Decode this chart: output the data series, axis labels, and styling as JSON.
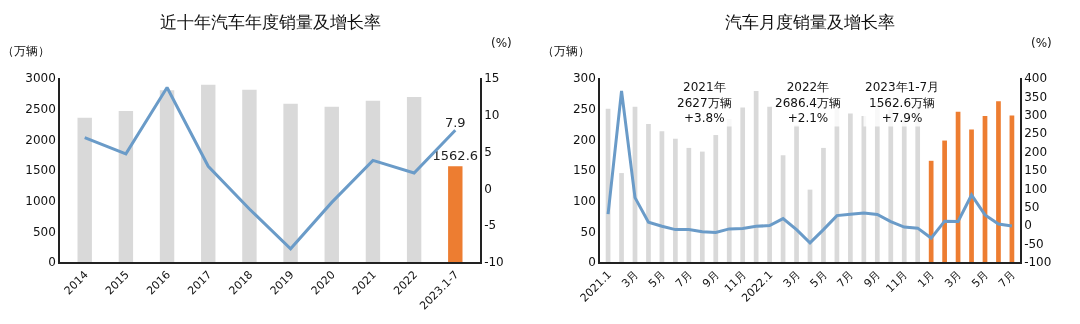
{
  "chart_data": [
    {
      "type": "bar",
      "title": "近十年汽车年度销量及增长率",
      "ylabel": "（万辆）",
      "y2label": "(%)",
      "categories": [
        "2014",
        "2015",
        "2016",
        "2017",
        "2018",
        "2019",
        "2020",
        "2021",
        "2022",
        "2023.1-7"
      ],
      "series": [
        {
          "colors": [
            "#d9d9d9",
            "#d9d9d9",
            "#d9d9d9",
            "#d9d9d9",
            "#d9d9d9",
            "#d9d9d9",
            "#d9d9d9",
            "#d9d9d9",
            "#d9d9d9",
            "#ed7d31"
          ],
          "values": [
            2350,
            2460,
            2800,
            2890,
            2810,
            2580,
            2530,
            2630,
            2690,
            1562.6
          ],
          "value_labels": [
            null,
            null,
            null,
            null,
            null,
            null,
            null,
            null,
            null,
            "1562.6"
          ]
        },
        {
          "type": "line",
          "axis": "y2",
          "color": "#6a9bc8",
          "values": [
            6.9,
            4.7,
            13.7,
            3.0,
            -2.8,
            -8.2,
            -1.9,
            3.8,
            2.1,
            7.9
          ],
          "value_labels": [
            null,
            null,
            null,
            null,
            null,
            null,
            null,
            null,
            null,
            "7.9"
          ]
        }
      ],
      "ylim": [
        0,
        3000
      ],
      "yticks": [
        0,
        500,
        1000,
        1500,
        2000,
        2500,
        3000
      ],
      "y2lim": [
        -10,
        15
      ],
      "y2ticks": [
        -10,
        -5,
        0,
        5,
        10,
        15
      ],
      "grid": false,
      "marker": "none",
      "line_style": "solid"
    },
    {
      "type": "bar",
      "title": "汽车月度销量及增长率",
      "ylabel": "（万辆）",
      "y2label": "(%)",
      "categories": [
        "2021.1",
        null,
        "3月",
        null,
        "5月",
        null,
        "7月",
        null,
        "9月",
        null,
        "11月",
        null,
        "2022.1",
        null,
        "3月",
        null,
        "5月",
        null,
        "7月",
        null,
        "9月",
        null,
        "11月",
        null,
        "1月",
        null,
        "3月",
        null,
        "5月",
        null,
        "7月"
      ],
      "series": [
        {
          "colors": [
            "#d9d9d9",
            "#d9d9d9",
            "#d9d9d9",
            "#d9d9d9",
            "#d9d9d9",
            "#d9d9d9",
            "#d9d9d9",
            "#d9d9d9",
            "#d9d9d9",
            "#d9d9d9",
            "#d9d9d9",
            "#d9d9d9",
            "#d9d9d9",
            "#d9d9d9",
            "#d9d9d9",
            "#d9d9d9",
            "#d9d9d9",
            "#d9d9d9",
            "#d9d9d9",
            "#d9d9d9",
            "#d9d9d9",
            "#d9d9d9",
            "#d9d9d9",
            "#d9d9d9",
            "#ed7d31",
            "#ed7d31",
            "#ed7d31",
            "#ed7d31",
            "#ed7d31",
            "#ed7d31",
            "#ed7d31"
          ],
          "values": [
            250,
            145,
            253,
            225,
            213,
            201,
            186,
            180,
            207,
            233,
            252,
            279,
            253,
            174,
            223,
            118,
            186,
            250,
            242,
            238,
            261,
            250,
            233,
            256,
            165,
            198,
            245,
            216,
            238,
            262,
            239
          ]
        },
        {
          "type": "line",
          "axis": "y2",
          "color": "#6a9bc8",
          "values": [
            30,
            365,
            75,
            8,
            -3,
            -12,
            -12,
            -18,
            -20,
            -10,
            -9,
            -3,
            -1,
            18,
            -12,
            -48,
            -12,
            26,
            30,
            33,
            29,
            10,
            -5,
            -8,
            -35,
            11,
            10,
            82,
            28,
            3,
            -2
          ]
        }
      ],
      "ylim": [
        0,
        300
      ],
      "yticks": [
        0,
        50,
        100,
        150,
        200,
        250,
        300
      ],
      "y2lim": [
        -100,
        400
      ],
      "y2ticks": [
        -100,
        -50,
        0,
        50,
        100,
        150,
        200,
        250,
        300,
        350,
        400
      ],
      "annotations": [
        "2021年\n2627万辆\n+3.8%",
        "2022年\n2686.4万辆\n+2.1%",
        "2023年1-7月\n1562.6万辆\n+7.9%"
      ],
      "grid": false,
      "marker": "none",
      "line_style": "solid"
    }
  ]
}
